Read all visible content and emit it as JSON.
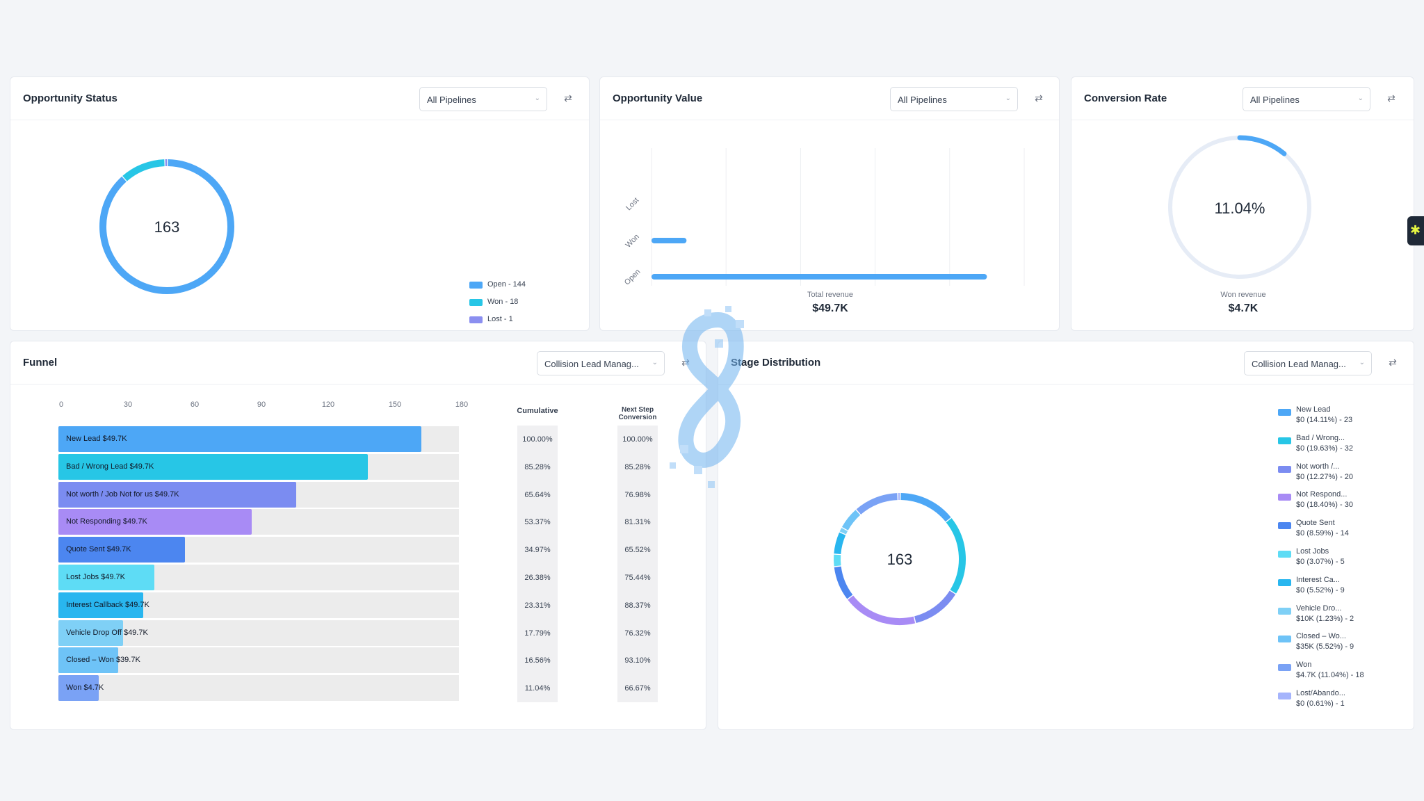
{
  "opportunity_status": {
    "title": "Opportunity Status",
    "pipeline": "All Pipelines",
    "total": "163",
    "legend": [
      {
        "label": "Open - 144",
        "color": "#4da7f6"
      },
      {
        "label": "Won - 18",
        "color": "#27c6e6"
      },
      {
        "label": "Lost - 1",
        "color": "#8b8ff0"
      }
    ]
  },
  "opportunity_value": {
    "title": "Opportunity Value",
    "pipeline": "All Pipelines",
    "summary_label": "Total revenue",
    "summary_value": "$49.7K"
  },
  "conversion_rate": {
    "title": "Conversion Rate",
    "pipeline": "All Pipelines",
    "rate_text": "11.04%",
    "rate": 11.04,
    "summary_label": "Won revenue",
    "summary_value": "$4.7K"
  },
  "funnel": {
    "title": "Funnel",
    "pipeline": "Collision Lead Manag...",
    "axis_ticks": [
      "0",
      "30",
      "60",
      "90",
      "120",
      "150",
      "180"
    ],
    "cumulative_header": "Cumulative",
    "next_step_header_line1": "Next Step",
    "next_step_header_line2": "Conversion",
    "rows": [
      {
        "label": "New Lead   $49.7K",
        "value": 163,
        "color": "#4da7f6",
        "cumulative": "100.00%",
        "next": "100.00%"
      },
      {
        "label": "Bad / Wrong Lead   $49.7K",
        "value": 139,
        "color": "#27c6e6",
        "cumulative": "85.28%",
        "next": "85.28%"
      },
      {
        "label": "Not worth / Job Not for us   $49.7K",
        "value": 107,
        "color": "#7b8cf1",
        "cumulative": "65.64%",
        "next": "76.98%"
      },
      {
        "label": "Not Responding   $49.7K",
        "value": 87,
        "color": "#a88bf5",
        "cumulative": "53.37%",
        "next": "81.31%"
      },
      {
        "label": "Quote Sent   $49.7K",
        "value": 57,
        "color": "#4c86f0",
        "cumulative": "34.97%",
        "next": "65.52%"
      },
      {
        "label": "Lost Jobs   $49.7K",
        "value": 43,
        "color": "#5edcf5",
        "cumulative": "26.38%",
        "next": "75.44%"
      },
      {
        "label": "Interest Callback   $49.7K",
        "value": 38,
        "color": "#29b6ef",
        "cumulative": "23.31%",
        "next": "88.37%"
      },
      {
        "label": "Vehicle Drop Off   $49.7K",
        "value": 29,
        "color": "#7fd0f6",
        "cumulative": "17.79%",
        "next": "76.32%"
      },
      {
        "label": "Closed – Won   $39.7K",
        "value": 27,
        "color": "#6ec3f7",
        "cumulative": "16.56%",
        "next": "93.10%"
      },
      {
        "label": "Won   $4.7K",
        "value": 18,
        "color": "#7aa2f5",
        "cumulative": "11.04%",
        "next": "66.67%"
      }
    ]
  },
  "stage_distribution": {
    "title": "Stage Distribution",
    "pipeline": "Collision Lead Manag...",
    "total": "163",
    "legend": [
      {
        "name": "New Lead",
        "detail": "$0 (14.11%) - 23",
        "color": "#4da7f6",
        "count": 23
      },
      {
        "name": "Bad / Wrong...",
        "detail": "$0 (19.63%) - 32",
        "color": "#27c6e6",
        "count": 32
      },
      {
        "name": "Not worth /...",
        "detail": "$0 (12.27%) - 20",
        "color": "#7b8cf1",
        "count": 20
      },
      {
        "name": "Not Respond...",
        "detail": "$0 (18.40%) - 30",
        "color": "#a88bf5",
        "count": 30
      },
      {
        "name": "Quote Sent",
        "detail": "$0 (8.59%) - 14",
        "color": "#4c86f0",
        "count": 14
      },
      {
        "name": "Lost Jobs",
        "detail": "$0 (3.07%) - 5",
        "color": "#5edcf5",
        "count": 5
      },
      {
        "name": "Interest Ca...",
        "detail": "$0 (5.52%) - 9",
        "color": "#29b6ef",
        "count": 9
      },
      {
        "name": "Vehicle Dro...",
        "detail": "$10K (1.23%) - 2",
        "color": "#7fd0f6",
        "count": 2
      },
      {
        "name": "Closed – Wo...",
        "detail": "$35K (5.52%) - 9",
        "color": "#6ec3f7",
        "count": 9
      },
      {
        "name": "Won",
        "detail": "$4.7K (11.04%) - 18",
        "color": "#7aa2f5",
        "count": 18
      },
      {
        "name": "Lost/Abando...",
        "detail": "$0 (0.61%) - 1",
        "color": "#a5b4fc",
        "count": 1
      }
    ]
  },
  "chart_data": [
    {
      "type": "pie",
      "labels": [
        "Open",
        "Won",
        "Lost"
      ],
      "values": [
        144,
        18,
        1
      ],
      "colors": [
        "#4da7f6",
        "#27c6e6",
        "#8b8ff0"
      ]
    },
    {
      "type": "bar",
      "orientation": "horizontal",
      "categories": [
        "Open",
        "Won",
        "Lost"
      ],
      "values": [
        45000,
        4700,
        0
      ],
      "xlabel": "Total revenue",
      "xlim": [
        0,
        50000
      ],
      "x_ticks": [
        "$0",
        "$10K",
        "$20K",
        "$30K",
        "$40K",
        "$50K"
      ],
      "grid": true
    },
    {
      "type": "pie",
      "labels": [
        "Won",
        "Other"
      ],
      "values": [
        11.04,
        88.96
      ],
      "colors": [
        "#4da7f6",
        "#e6ecf6"
      ]
    },
    {
      "type": "bar",
      "orientation": "horizontal",
      "categories": [
        "New Lead",
        "Bad / Wrong Lead",
        "Not worth / Job Not for us",
        "Not Responding",
        "Quote Sent",
        "Lost Jobs",
        "Interest Callback",
        "Vehicle Drop Off",
        "Closed – Won",
        "Won"
      ],
      "values": [
        163,
        139,
        107,
        87,
        57,
        43,
        38,
        29,
        27,
        18
      ],
      "xlim": [
        0,
        180
      ]
    },
    {
      "type": "pie",
      "labels": [
        "New Lead",
        "Bad / Wrong...",
        "Not worth /...",
        "Not Respond...",
        "Quote Sent",
        "Lost Jobs",
        "Interest Ca...",
        "Vehicle Dro...",
        "Closed – Wo...",
        "Won",
        "Lost/Abando..."
      ],
      "values": [
        23,
        32,
        20,
        30,
        14,
        5,
        9,
        2,
        9,
        18,
        1
      ]
    }
  ]
}
